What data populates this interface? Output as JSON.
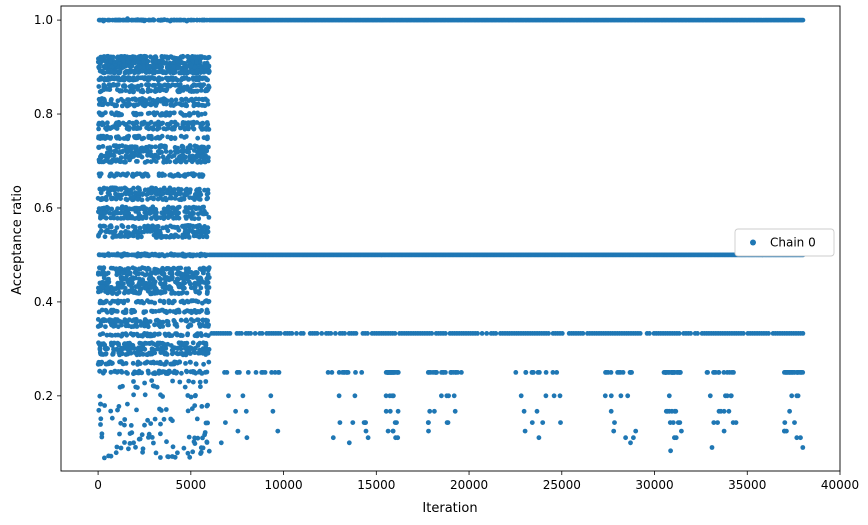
{
  "chart_data": {
    "type": "scatter",
    "title": "",
    "xlabel": "Iteration",
    "ylabel": "Acceptance ratio",
    "xlim": [
      -2000,
      40000
    ],
    "ylim": [
      0.04,
      1.03
    ],
    "xticks": [
      0,
      5000,
      10000,
      15000,
      20000,
      25000,
      30000,
      35000,
      40000
    ],
    "yticks": [
      0.2,
      0.4,
      0.6,
      0.8,
      1.0
    ],
    "xtick_labels": [
      "0",
      "5000",
      "10000",
      "15000",
      "20000",
      "25000",
      "30000",
      "35000",
      "40000"
    ],
    "ytick_labels": [
      "0.2",
      "0.4",
      "0.6",
      "0.8",
      "1.0"
    ],
    "grid": false,
    "legend": {
      "position": "right",
      "entries": [
        "Chain 0"
      ]
    },
    "marker_color": "#1f77b4",
    "series": [
      {
        "name": "Chain 0",
        "phases": [
          {
            "x_range": [
              0,
              6000
            ],
            "description": "early adaptation phase: many distinct ratio levels",
            "levels": [
              1.0,
              0.92,
              0.91,
              0.9,
              0.89,
              0.875,
              0.86,
              0.85,
              0.83,
              0.82,
              0.8,
              0.78,
              0.77,
              0.75,
              0.73,
              0.72,
              0.71,
              0.7,
              0.67,
              0.64,
              0.63,
              0.62,
              0.6,
              0.59,
              0.58,
              0.56,
              0.55,
              0.54,
              0.5,
              0.47,
              0.46,
              0.45,
              0.44,
              0.43,
              0.42,
              0.4,
              0.38,
              0.36,
              0.35,
              0.33,
              0.31,
              0.3,
              0.29,
              0.27,
              0.25,
              0.23,
              0.22,
              0.2,
              0.18,
              0.17,
              0.15,
              0.14,
              0.12,
              0.11,
              0.1,
              0.09,
              0.08,
              0.07
            ]
          },
          {
            "x_range": [
              6000,
              38000
            ],
            "description": "stationary phase: discrete ratio levels",
            "dense_levels": [
              1.0,
              0.5,
              0.333
            ],
            "sparse_levels": [
              0.25,
              0.2,
              0.167,
              0.143,
              0.125,
              0.111,
              0.1,
              0.09,
              0.083
            ]
          }
        ]
      }
    ]
  }
}
